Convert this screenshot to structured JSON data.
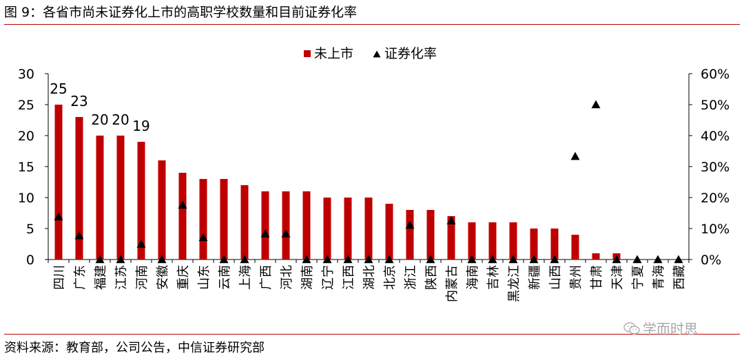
{
  "figure": {
    "title": "图 9：各省市尚未证券化上市的高职学校数量和目前证券化率",
    "source": "资料来源：教育部，公司公告，中信证券研究部",
    "watermark": "学而时思",
    "watermark_icon": "wechat-icon"
  },
  "colors": {
    "bar": "#c00000",
    "marker": "#000000",
    "rule": "#c00000"
  },
  "chart_data": {
    "type": "bar",
    "title": "",
    "xlabel": "",
    "ylabel": "",
    "legend_position": "top",
    "grid": false,
    "categories": [
      "四川",
      "广东",
      "福建",
      "江苏",
      "河南",
      "安徽",
      "重庆",
      "山东",
      "云南",
      "上海",
      "广西",
      "河北",
      "湖南",
      "辽宁",
      "江西",
      "湖北",
      "北京",
      "浙江",
      "陕西",
      "内蒙古",
      "海南",
      "吉林",
      "黑龙江",
      "新疆",
      "山西",
      "贵州",
      "甘肃",
      "天津",
      "宁夏",
      "青海",
      "西藏"
    ],
    "series": [
      {
        "name": "未上市",
        "type": "bar",
        "axis": "left",
        "values": [
          25,
          23,
          20,
          20,
          19,
          16,
          14,
          13,
          13,
          12,
          11,
          11,
          11,
          10,
          10,
          10,
          9,
          8,
          8,
          7,
          6,
          6,
          6,
          5,
          5,
          4,
          1,
          1,
          0,
          0,
          0
        ]
      },
      {
        "name": "证券化率",
        "type": "scatter",
        "marker": "triangle",
        "axis": "right",
        "values": [
          13.8,
          7.7,
          0,
          0,
          5.0,
          0,
          17.6,
          7.1,
          0,
          0,
          8.3,
          8.3,
          0,
          0,
          0,
          0,
          0,
          11.1,
          0,
          12.5,
          0,
          0,
          0,
          0,
          0,
          33.3,
          50.0,
          0,
          0,
          0,
          0
        ]
      }
    ],
    "data_labels": [
      {
        "index": 0,
        "text": "25"
      },
      {
        "index": 1,
        "text": "23"
      },
      {
        "index": 2,
        "text": "20"
      },
      {
        "index": 3,
        "text": "20"
      },
      {
        "index": 4,
        "text": "19"
      }
    ],
    "y_left": {
      "ylim": [
        0,
        30
      ],
      "ticks": [
        "0",
        "5",
        "10",
        "15",
        "20",
        "25",
        "30"
      ]
    },
    "y_right": {
      "ylim": [
        0,
        60
      ],
      "unit": "%",
      "ticks": [
        "0%",
        "10%",
        "20%",
        "30%",
        "40%",
        "50%",
        "60%"
      ]
    }
  }
}
